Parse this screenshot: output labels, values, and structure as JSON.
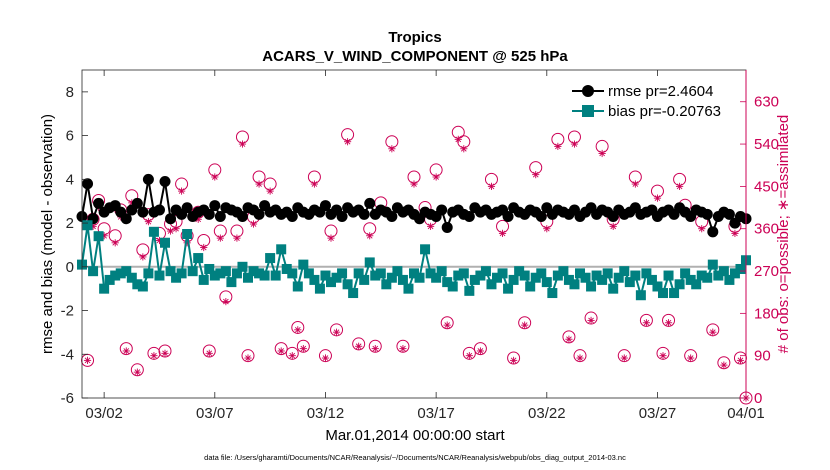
{
  "chart_data": {
    "type": "line",
    "title": "Tropics",
    "subtitle": "ACARS_V_WIND_COMPONENT @ 525 hPa",
    "xlabel": "Mar.01,2014 00:00:00 start",
    "ylabel": "rmse and bias (model - observation)",
    "y2label": "# of obs: o=possible; ∗=assimilated",
    "footnote": "data file: /Users/gharamti/Documents/NCAR/Reanalysis/~/Documents/NCAR/Reanalysis/webpub/obs_diag_output_2014-03.nc",
    "xlim": [
      1.0,
      31.0
    ],
    "ylim": [
      -6,
      9
    ],
    "y2lim": [
      0,
      697.5
    ],
    "x_ticks": [
      2,
      7,
      12,
      17,
      22,
      27,
      31
    ],
    "x_tick_labels": [
      "03/02",
      "03/07",
      "03/12",
      "03/17",
      "03/22",
      "03/27",
      "04/01"
    ],
    "y_ticks": [
      -6,
      -4,
      -2,
      0,
      2,
      4,
      6,
      8
    ],
    "y_tick_labels": [
      "-6",
      "-4",
      "-2",
      "0",
      "2",
      "4",
      "6",
      "8"
    ],
    "y2_ticks": [
      0,
      90,
      180,
      270,
      360,
      450,
      540,
      630
    ],
    "y2_tick_labels": [
      "0",
      "90",
      "180",
      "270",
      "360",
      "450",
      "540",
      "630"
    ],
    "zero_line": 0,
    "legend_position": "top-right",
    "colors": {
      "rmse": "#000000",
      "bias": "#008080",
      "obs": "#cc0055",
      "zero": "#b0b0b0"
    },
    "x": [
      1.0,
      1.25,
      1.5,
      1.75,
      2.0,
      2.25,
      2.5,
      2.75,
      3.0,
      3.25,
      3.5,
      3.75,
      4.0,
      4.25,
      4.5,
      4.75,
      5.0,
      5.25,
      5.5,
      5.75,
      6.0,
      6.25,
      6.5,
      6.75,
      7.0,
      7.25,
      7.5,
      7.75,
      8.0,
      8.25,
      8.5,
      8.75,
      9.0,
      9.25,
      9.5,
      9.75,
      10.0,
      10.25,
      10.5,
      10.75,
      11.0,
      11.25,
      11.5,
      11.75,
      12.0,
      12.25,
      12.5,
      12.75,
      13.0,
      13.25,
      13.5,
      13.75,
      14.0,
      14.25,
      14.5,
      14.75,
      15.0,
      15.25,
      15.5,
      15.75,
      16.0,
      16.25,
      16.5,
      16.75,
      17.0,
      17.25,
      17.5,
      17.75,
      18.0,
      18.25,
      18.5,
      18.75,
      19.0,
      19.25,
      19.5,
      19.75,
      20.0,
      20.25,
      20.5,
      20.75,
      21.0,
      21.25,
      21.5,
      21.75,
      22.0,
      22.25,
      22.5,
      22.75,
      23.0,
      23.25,
      23.5,
      23.75,
      24.0,
      24.25,
      24.5,
      24.75,
      25.0,
      25.25,
      25.5,
      25.75,
      26.0,
      26.25,
      26.5,
      26.75,
      27.0,
      27.25,
      27.5,
      27.75,
      28.0,
      28.25,
      28.5,
      28.75,
      29.0,
      29.25,
      29.5,
      29.75,
      30.0,
      30.25,
      30.5,
      30.75,
      31.0
    ],
    "series": [
      {
        "name": "rmse pr=2.4604",
        "marker": "circle",
        "values": [
          2.3,
          3.8,
          2.2,
          2.9,
          2.5,
          2.7,
          2.8,
          2.5,
          2.2,
          2.6,
          2.9,
          2.5,
          4.0,
          2.5,
          2.6,
          3.9,
          2.2,
          2.6,
          2.4,
          2.7,
          2.3,
          2.5,
          2.6,
          2.4,
          2.8,
          2.3,
          2.7,
          2.6,
          2.5,
          2.3,
          2.7,
          2.6,
          2.4,
          2.8,
          2.5,
          2.6,
          2.4,
          2.5,
          2.3,
          2.7,
          2.5,
          2.4,
          2.6,
          2.5,
          2.8,
          2.4,
          2.6,
          2.3,
          2.7,
          2.5,
          2.6,
          2.4,
          2.9,
          2.4,
          2.6,
          2.5,
          2.3,
          2.7,
          2.5,
          2.6,
          2.4,
          2.2,
          2.5,
          2.4,
          2.3,
          2.6,
          1.8,
          2.5,
          2.6,
          2.4,
          2.3,
          2.7,
          2.5,
          2.6,
          2.4,
          2.5,
          2.6,
          2.3,
          2.7,
          2.5,
          2.4,
          2.6,
          2.5,
          2.3,
          2.7,
          2.4,
          2.6,
          2.5,
          2.4,
          2.6,
          2.3,
          2.5,
          2.7,
          2.4,
          2.6,
          2.5,
          2.3,
          2.6,
          2.4,
          2.5,
          2.7,
          2.4,
          2.5,
          2.6,
          2.3,
          2.5,
          2.6,
          2.4,
          2.7,
          2.5,
          2.3,
          2.6,
          2.5,
          2.4,
          1.6,
          2.3,
          2.5,
          2.4,
          2.0,
          2.3,
          2.2
        ]
      },
      {
        "name": "bias pr=-0.20763",
        "marker": "square",
        "values": [
          0.1,
          1.9,
          -0.2,
          1.4,
          -1.0,
          -0.6,
          -0.4,
          -0.3,
          -0.2,
          -0.5,
          -0.8,
          -0.9,
          -0.3,
          1.6,
          -0.4,
          1.1,
          -0.2,
          -0.5,
          -0.3,
          1.5,
          -0.2,
          0.4,
          -0.6,
          -0.1,
          -0.4,
          -0.3,
          -0.2,
          -0.7,
          -0.3,
          0.0,
          -0.5,
          -0.2,
          -0.3,
          -0.4,
          0.4,
          -0.4,
          0.8,
          -0.1,
          -0.3,
          -0.9,
          0.1,
          -0.3,
          -0.6,
          -1.0,
          -0.4,
          -0.7,
          -0.5,
          -0.3,
          -0.8,
          -1.2,
          -0.3,
          -0.6,
          0.2,
          -0.4,
          -0.3,
          -0.8,
          -0.5,
          -0.2,
          -0.6,
          -1.0,
          -0.3,
          -0.5,
          0.8,
          -0.3,
          -0.5,
          -0.2,
          -0.7,
          -0.9,
          -0.4,
          -0.3,
          -1.1,
          -0.6,
          -0.4,
          -0.2,
          -0.8,
          -0.5,
          -0.3,
          -1.0,
          -0.6,
          -0.2,
          -0.4,
          -0.9,
          -0.5,
          -0.3,
          -0.7,
          -1.2,
          -0.4,
          -0.2,
          -0.6,
          -0.8,
          -0.3,
          -0.5,
          -0.9,
          -0.4,
          -0.6,
          -0.3,
          -1.0,
          -0.5,
          -0.2,
          -0.7,
          -0.4,
          -1.3,
          -0.3,
          -0.6,
          -0.9,
          -1.2,
          -0.4,
          -1.2,
          -0.8,
          -0.3,
          -0.6,
          -0.8,
          -0.4,
          -0.5,
          0.1,
          -0.4,
          -0.2,
          -0.6,
          -0.3,
          -0.1,
          0.3
        ]
      }
    ],
    "obs_possible": {
      "x": [
        1.25,
        1.5,
        1.75,
        2.0,
        2.5,
        2.75,
        3.0,
        3.25,
        3.5,
        3.75,
        4.0,
        4.25,
        4.5,
        4.75,
        5.0,
        5.25,
        5.5,
        5.75,
        6.25,
        6.5,
        6.75,
        7.0,
        7.25,
        7.5,
        8.0,
        8.25,
        8.5,
        8.75,
        9.0,
        9.5,
        10.0,
        10.5,
        10.75,
        11.0,
        11.5,
        12.0,
        12.25,
        12.5,
        13.0,
        13.5,
        14.0,
        14.25,
        14.5,
        15.0,
        15.5,
        16.0,
        16.5,
        16.75,
        17.0,
        17.5,
        18.0,
        18.25,
        18.5,
        19.0,
        19.5,
        20.0,
        20.5,
        21.0,
        21.5,
        22.0,
        22.5,
        23.0,
        23.25,
        23.5,
        24.0,
        24.5,
        25.0,
        25.5,
        26.0,
        26.5,
        27.0,
        27.25,
        27.5,
        28.0,
        28.25,
        28.5,
        29.0,
        29.5,
        30.0,
        30.5,
        30.75,
        31.0
      ],
      "values": [
        80,
        380,
        420,
        360,
        345,
        400,
        105,
        430,
        60,
        315,
        390,
        95,
        350,
        100,
        370,
        375,
        455,
        345,
        395,
        335,
        100,
        485,
        355,
        215,
        355,
        555,
        90,
        385,
        470,
        455,
        105,
        95,
        150,
        110,
        470,
        90,
        355,
        145,
        560,
        115,
        360,
        110,
        415,
        545,
        110,
        470,
        405,
        380,
        485,
        160,
        565,
        545,
        95,
        105,
        465,
        365,
        85,
        160,
        490,
        375,
        550,
        130,
        555,
        90,
        170,
        535,
        380,
        90,
        470,
        165,
        440,
        95,
        165,
        465,
        410,
        90,
        375,
        145,
        75,
        365,
        85,
        0
      ]
    },
    "obs_assimilated": {
      "x": [
        1.25,
        1.5,
        1.75,
        2.0,
        2.5,
        2.75,
        3.0,
        3.25,
        3.5,
        3.75,
        4.0,
        4.25,
        4.5,
        4.75,
        5.0,
        5.25,
        5.5,
        5.75,
        6.25,
        6.5,
        6.75,
        7.0,
        7.25,
        7.5,
        8.0,
        8.25,
        8.5,
        8.75,
        9.0,
        9.5,
        10.0,
        10.5,
        10.75,
        11.0,
        11.5,
        12.0,
        12.25,
        12.5,
        13.0,
        13.5,
        14.0,
        14.25,
        14.5,
        15.0,
        15.5,
        16.0,
        16.5,
        16.75,
        17.0,
        17.5,
        18.0,
        18.25,
        18.5,
        19.0,
        19.5,
        20.0,
        20.5,
        21.0,
        21.5,
        22.0,
        22.5,
        23.0,
        23.25,
        23.5,
        24.0,
        24.5,
        25.0,
        25.5,
        26.0,
        26.5,
        27.0,
        27.25,
        27.5,
        28.0,
        28.25,
        28.5,
        29.0,
        29.5,
        30.0,
        30.5,
        30.75,
        31.0
      ],
      "values": [
        80,
        365,
        405,
        345,
        330,
        385,
        100,
        415,
        55,
        300,
        375,
        90,
        335,
        95,
        355,
        360,
        440,
        330,
        380,
        320,
        95,
        470,
        340,
        205,
        340,
        540,
        85,
        370,
        455,
        440,
        100,
        90,
        145,
        105,
        455,
        85,
        340,
        140,
        545,
        110,
        345,
        105,
        400,
        530,
        105,
        455,
        390,
        365,
        470,
        155,
        550,
        530,
        90,
        100,
        450,
        350,
        80,
        155,
        475,
        360,
        535,
        125,
        540,
        85,
        165,
        520,
        365,
        85,
        455,
        160,
        425,
        90,
        160,
        450,
        395,
        85,
        360,
        140,
        70,
        350,
        80,
        0
      ]
    }
  }
}
